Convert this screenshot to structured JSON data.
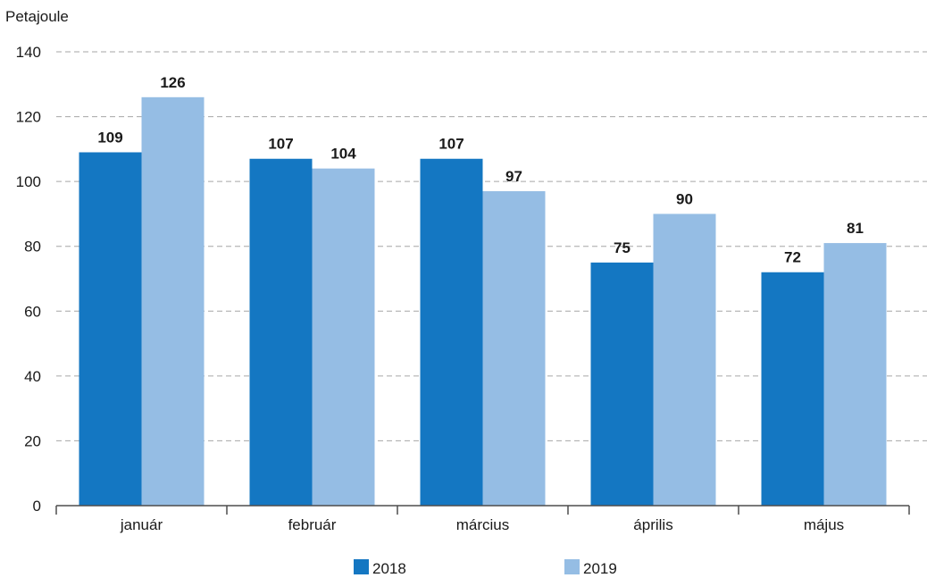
{
  "chart_data": {
    "type": "bar",
    "ylabel": "Petajoule",
    "categories": [
      "január",
      "február",
      "március",
      "április",
      "május"
    ],
    "series": [
      {
        "name": "2018",
        "color": "#1477c2",
        "values": [
          109,
          107,
          107,
          75,
          72
        ]
      },
      {
        "name": "2019",
        "color": "#95bde4",
        "values": [
          126,
          104,
          97,
          90,
          81
        ]
      }
    ],
    "ylim": [
      0,
      140
    ],
    "yticks": [
      0,
      20,
      40,
      60,
      80,
      100,
      120,
      140
    ],
    "grid": true,
    "legend_position": "bottom",
    "data_labels": true
  }
}
